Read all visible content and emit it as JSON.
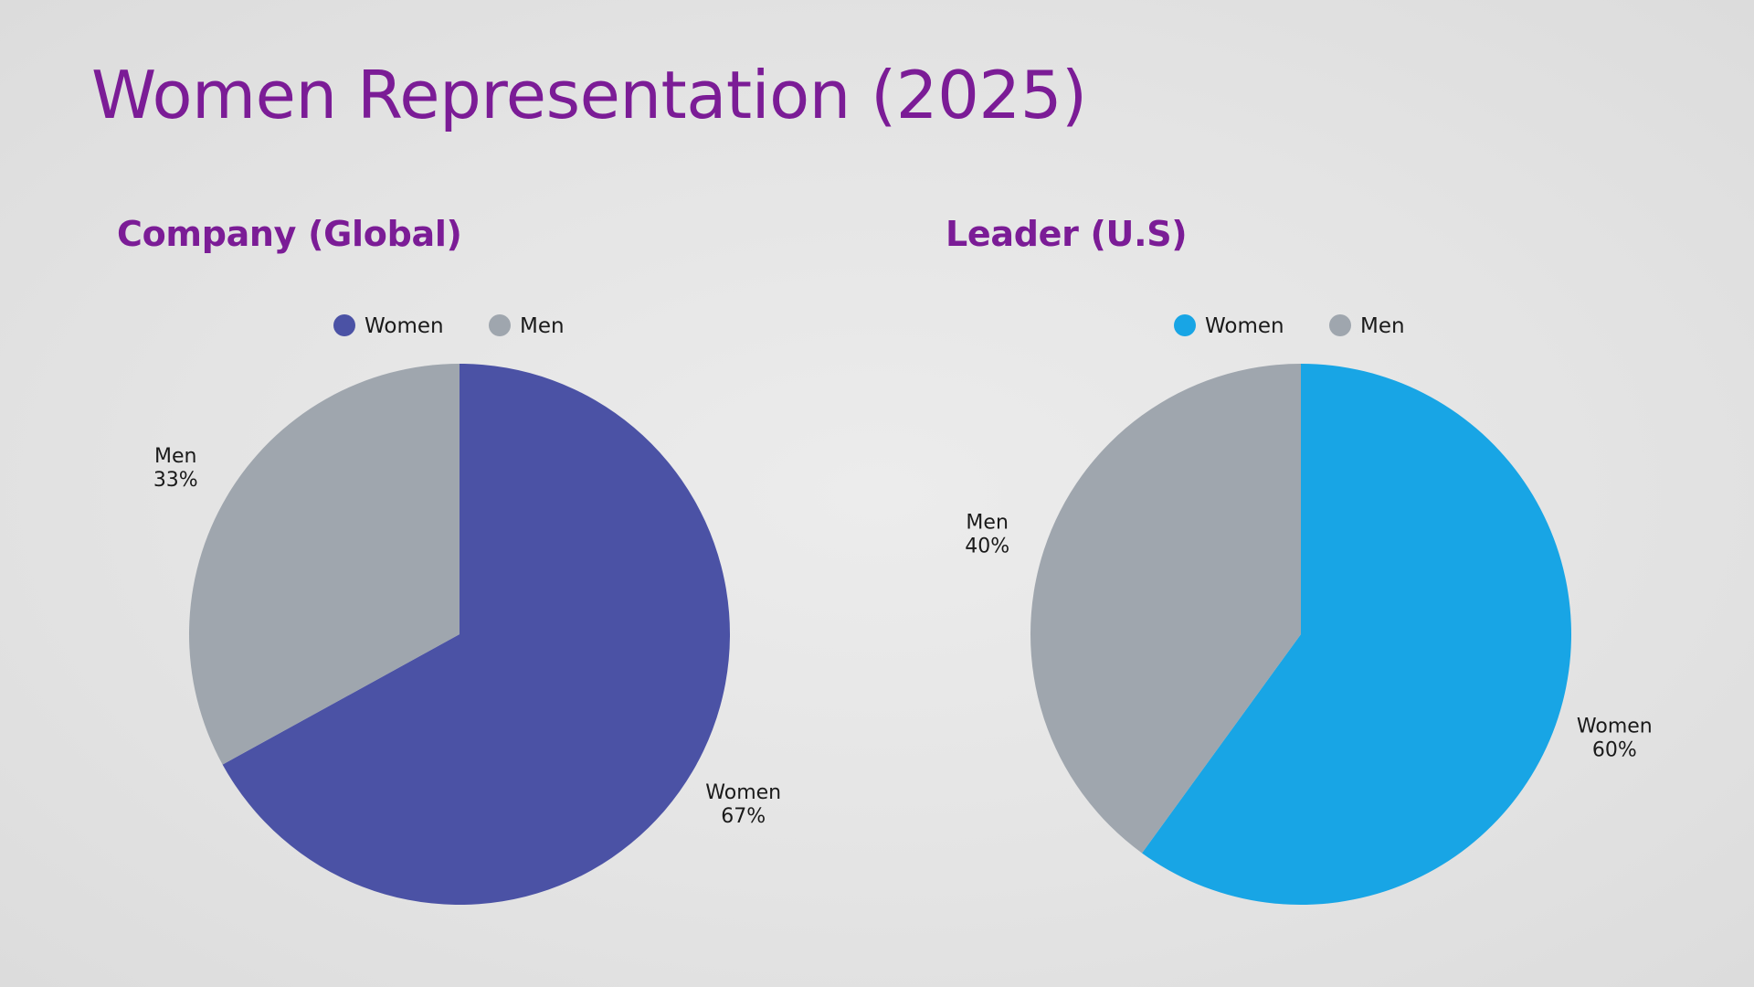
{
  "slide": {
    "title": "Women Representation (2025)",
    "title_color": "#7b1c96",
    "subtitle_color": "#7b1c96"
  },
  "chart_data": [
    {
      "type": "pie",
      "title": "Company (Global)",
      "categories": [
        "Women",
        "Men"
      ],
      "values": [
        67,
        33
      ],
      "unit": "%",
      "colors": [
        "#4b52a5",
        "#9fa6ae"
      ],
      "legend_position": "top-center",
      "data_labels": [
        {
          "category": "Women",
          "value": "67%"
        },
        {
          "category": "Men",
          "value": "33%"
        }
      ]
    },
    {
      "type": "pie",
      "title": "Leader (U.S)",
      "categories": [
        "Women",
        "Men"
      ],
      "values": [
        60,
        40
      ],
      "unit": "%",
      "colors": [
        "#18a5e5",
        "#9fa6ae"
      ],
      "legend_position": "top-center",
      "data_labels": [
        {
          "category": "Women",
          "value": "60%"
        },
        {
          "category": "Men",
          "value": "40%"
        }
      ]
    }
  ]
}
